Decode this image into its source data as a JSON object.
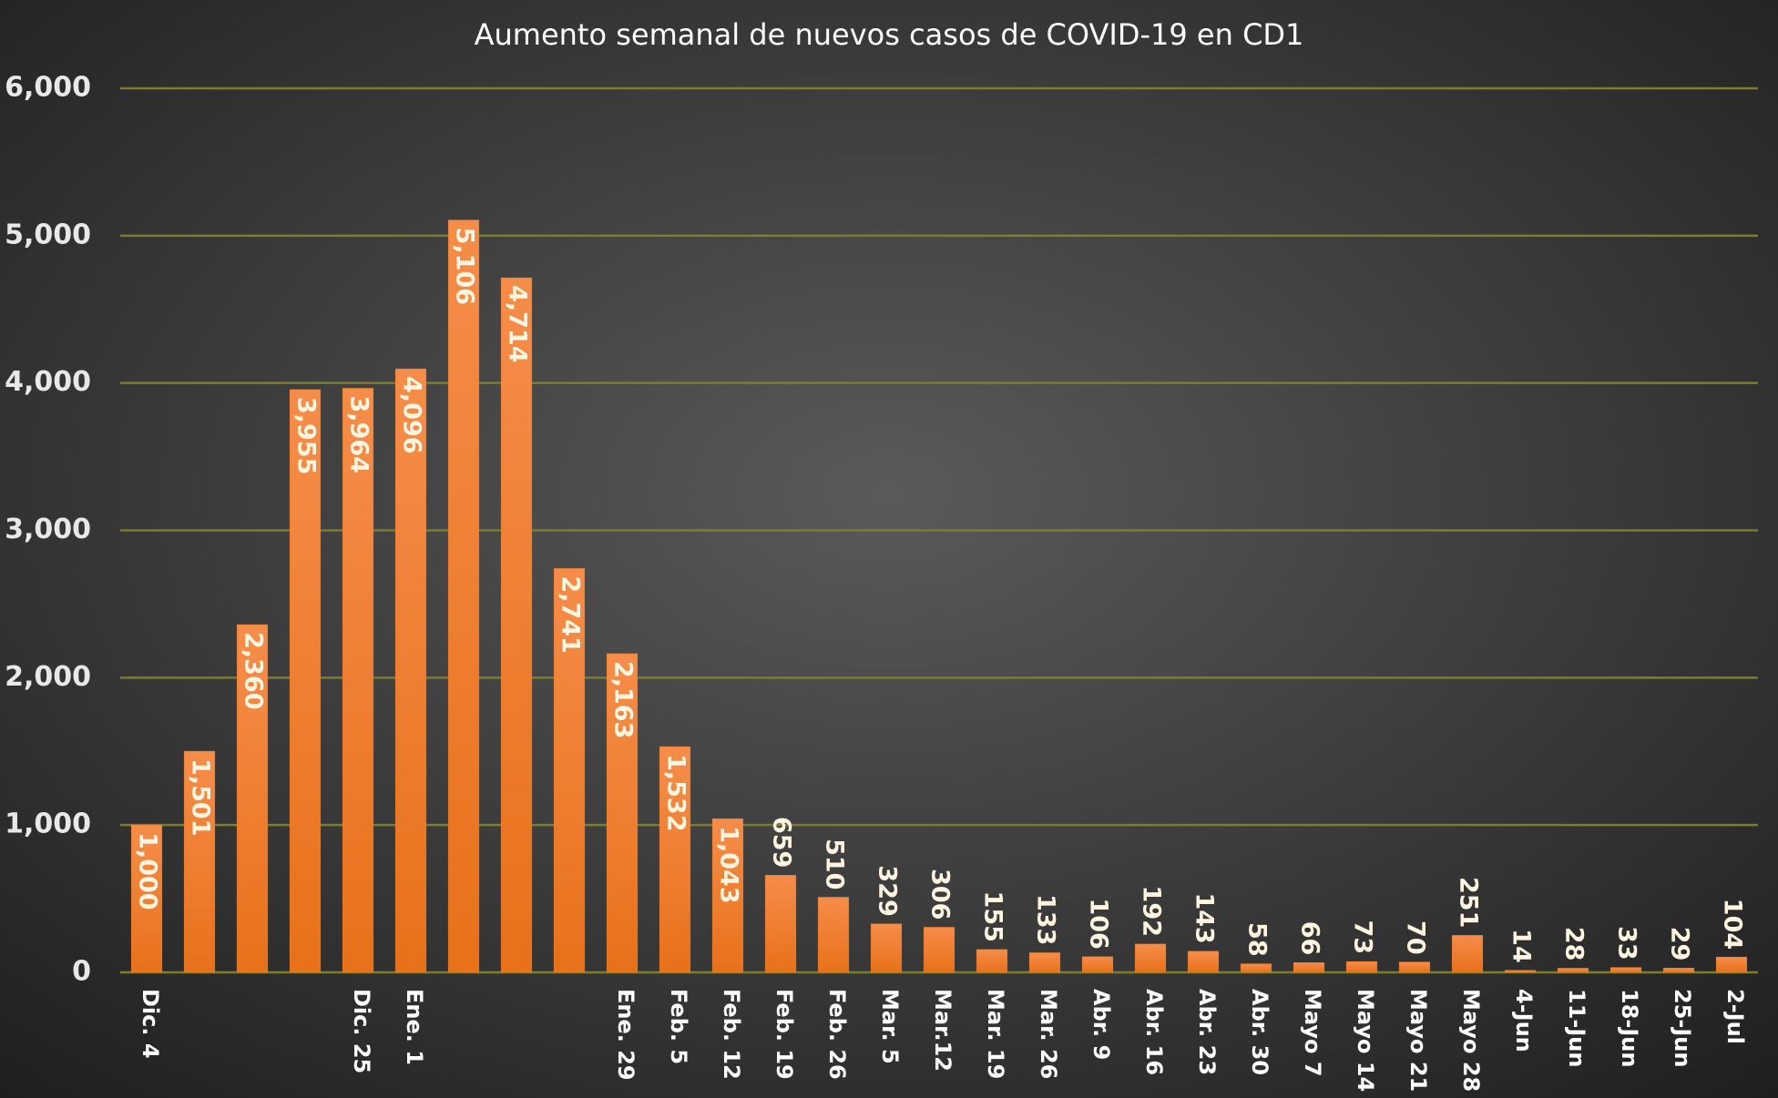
{
  "chart_data": {
    "type": "bar",
    "title": "Aumento semanal de nuevos casos de COVID-19 en CD1",
    "categories": [
      "Dic. 4",
      null,
      null,
      null,
      "Dic. 25",
      "Ene. 1",
      null,
      null,
      null,
      "Ene. 29",
      "Feb. 5",
      "Feb. 12",
      "Feb. 19",
      "Feb. 26",
      "Mar. 5",
      "Mar.12",
      "Mar. 19",
      "Mar. 26",
      "Abr. 9",
      "Abr. 16",
      "Abr. 23",
      "Abr. 30",
      "Mayo 7",
      "Mayo 14",
      "Mayo 21",
      "Mayo 28",
      "4-Jun",
      "11-Jun",
      "18-Jun",
      "25-Jun",
      "2-Jul"
    ],
    "values": [
      1000,
      1501,
      2360,
      3955,
      3964,
      4096,
      5106,
      4714,
      2741,
      2163,
      1532,
      1043,
      659,
      510,
      329,
      306,
      155,
      133,
      106,
      192,
      143,
      58,
      66,
      73,
      70,
      251,
      14,
      28,
      33,
      29,
      104
    ],
    "value_labels": [
      "1,000",
      "1,501",
      "2,360",
      "3,955",
      "3,964",
      "4,096",
      "5,106",
      "4,714",
      "2,741",
      "2,163",
      "1,532",
      "1,043",
      "659",
      "510",
      "329",
      "306",
      "155",
      "133",
      "106",
      "192",
      "143",
      "58",
      "66",
      "73",
      "70",
      "251",
      "14",
      "28",
      "33",
      "29",
      "104"
    ],
    "color": "#f07d22",
    "ylim": [
      0,
      6000
    ],
    "yticks": [
      0,
      {
        "value": 1000,
        "label": "1,000"
      },
      {
        "value": 2000,
        "label": "2,000"
      },
      {
        "value": 3000,
        "label": "3,000"
      },
      {
        "value": 4000,
        "label": "4,000"
      },
      {
        "value": 5000,
        "label": "5,000"
      },
      {
        "value": 6000,
        "label": "6,000"
      }
    ],
    "grid": true
  }
}
